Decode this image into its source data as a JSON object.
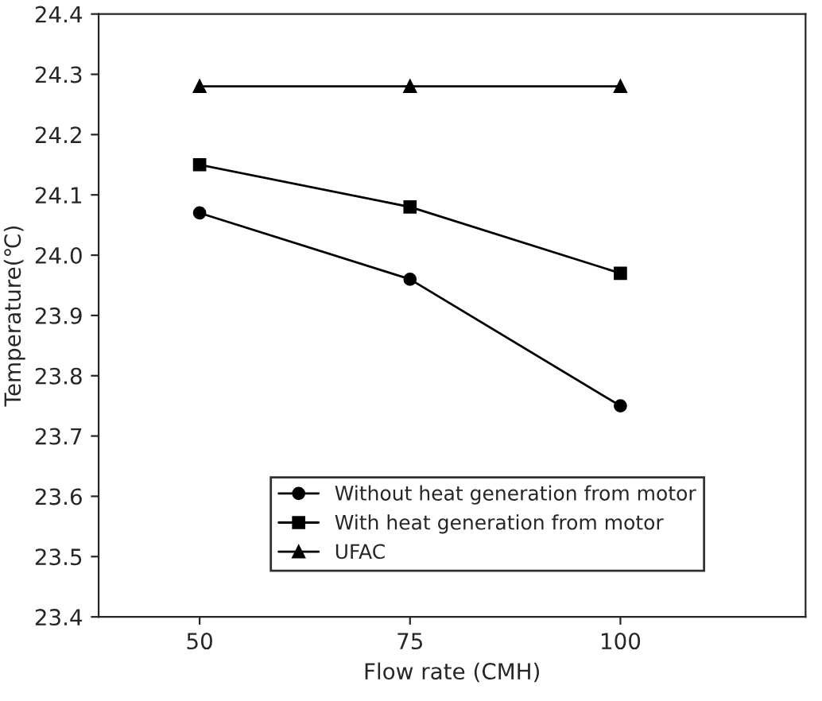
{
  "chart_data": {
    "type": "line",
    "xlabel": "Flow rate (CMH)",
    "ylabel": "Temperature(℃)",
    "x": [
      50,
      75,
      100
    ],
    "xlim": [
      38,
      122
    ],
    "xticks": [
      50,
      75,
      100
    ],
    "series": [
      {
        "name": "Without heat generation from motor",
        "color": "#000000",
        "marker": "circle",
        "values": [
          24.07,
          23.96,
          23.75
        ]
      },
      {
        "name": "With heat generation from motor",
        "color": "#000000",
        "marker": "square",
        "values": [
          24.15,
          24.08,
          23.97
        ]
      },
      {
        "name": "UFAC",
        "color": "#000000",
        "marker": "triangle",
        "values": [
          24.28,
          24.28,
          24.28
        ]
      }
    ],
    "ylim": [
      23.4,
      24.4
    ],
    "yticks": [
      23.4,
      23.5,
      23.6,
      23.7,
      23.8,
      23.9,
      {
        "value": 24.0,
        "label": "24.0"
      },
      24.1,
      24.2,
      24.3,
      24.4
    ],
    "legend": "bottom",
    "grid": false,
    "line_style": "solid"
  }
}
